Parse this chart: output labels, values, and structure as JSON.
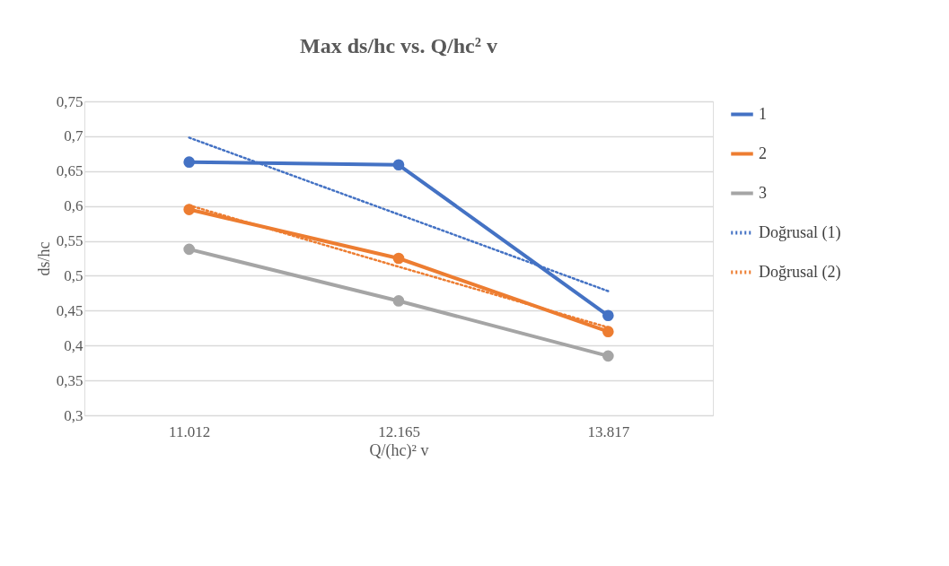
{
  "chart_data": {
    "type": "line",
    "title": "Max ds/hc vs. Q/hc² v",
    "xlabel": "Q/(hc)² v",
    "ylabel": "ds/hc",
    "categories": [
      "11.012",
      "12.165",
      "13.817"
    ],
    "series": [
      {
        "name": "1",
        "color": "#4472c4",
        "values": [
          0.663,
          0.659,
          0.443
        ],
        "marker": "circle",
        "line_style": "solid"
      },
      {
        "name": "2",
        "color": "#ed7d31",
        "values": [
          0.595,
          0.525,
          0.42
        ],
        "marker": "circle",
        "line_style": "solid"
      },
      {
        "name": "3",
        "color": "#a5a5a5",
        "values": [
          0.538,
          0.464,
          0.385
        ],
        "marker": "circle",
        "line_style": "solid"
      },
      {
        "name": "Doğrusal (1)",
        "color": "#4472c4",
        "values": [
          0.698,
          0.588,
          0.478
        ],
        "marker": "none",
        "line_style": "dotted"
      },
      {
        "name": "Doğrusal (2)",
        "color": "#ed7d31",
        "values": [
          0.601,
          0.513,
          0.426
        ],
        "marker": "none",
        "line_style": "dotted"
      }
    ],
    "ylim": [
      0.3,
      0.75
    ],
    "yticks": [
      {
        "value": 0.3,
        "label": "0,3"
      },
      {
        "value": 0.35,
        "label": "0,35"
      },
      {
        "value": 0.4,
        "label": "0,4"
      },
      {
        "value": 0.45,
        "label": "0,45"
      },
      {
        "value": 0.5,
        "label": "0,5"
      },
      {
        "value": 0.55,
        "label": "0,55"
      },
      {
        "value": 0.6,
        "label": "0,6"
      },
      {
        "value": 0.65,
        "label": "0,65"
      },
      {
        "value": 0.7,
        "label": "0,7"
      },
      {
        "value": 0.75,
        "label": "0,75"
      }
    ],
    "grid": "y",
    "legend": "right"
  }
}
